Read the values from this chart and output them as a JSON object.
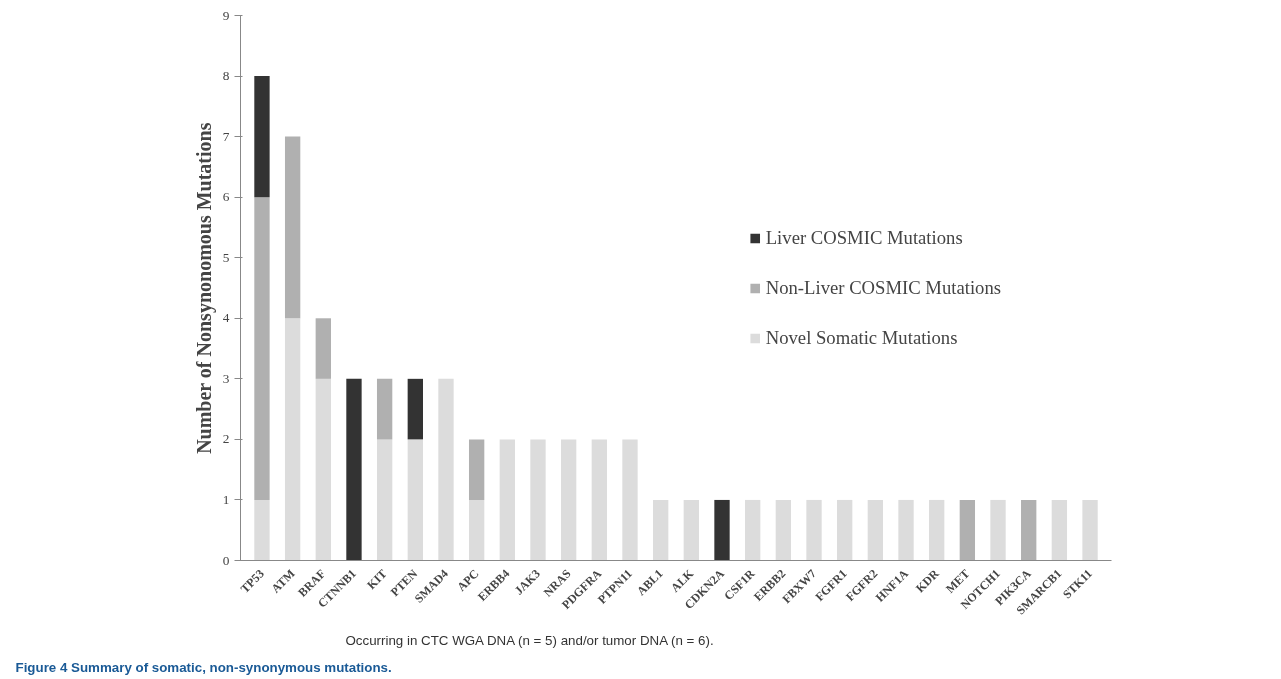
{
  "chart_data": {
    "type": "bar",
    "stacked": true,
    "ylabel": "Number of Nonsynonomous Mutations",
    "categories": [
      "TP53",
      "ATM",
      "BRAF",
      "CTNNB1",
      "KIT",
      "PTEN",
      "SMAD4",
      "APC",
      "ERBB4",
      "JAK3",
      "NRAS",
      "PDGFRA",
      "PTPN11",
      "ABL1",
      "ALK",
      "CDKN2A",
      "CSF1R",
      "ERBB2",
      "FBXW7",
      "FGFR1",
      "FGFR2",
      "HNF1A",
      "KDR",
      "MET",
      "NOTCH1",
      "PIK3CA",
      "SMARCB1",
      "STK11"
    ],
    "series": [
      {
        "name": "Novel Somatic Mutations",
        "color": "#dcdcdc",
        "values": [
          1,
          4,
          3,
          0,
          2,
          2,
          3,
          1,
          2,
          2,
          2,
          2,
          2,
          1,
          1,
          0,
          1,
          1,
          1,
          1,
          1,
          1,
          1,
          0,
          1,
          0,
          1,
          1
        ]
      },
      {
        "name": "Non-Liver COSMIC Mutations",
        "color": "#b0b0b0",
        "values": [
          5,
          3,
          1,
          0,
          1,
          0,
          0,
          1,
          0,
          0,
          0,
          0,
          0,
          0,
          0,
          0,
          0,
          0,
          0,
          0,
          0,
          0,
          0,
          1,
          0,
          1,
          0,
          0
        ]
      },
      {
        "name": "Liver COSMIC Mutations",
        "color": "#333333",
        "values": [
          2,
          0,
          0,
          3,
          0,
          1,
          0,
          0,
          0,
          0,
          0,
          0,
          0,
          0,
          0,
          1,
          0,
          0,
          0,
          0,
          0,
          0,
          0,
          0,
          0,
          0,
          0,
          0
        ]
      }
    ],
    "ylim": [
      0,
      9
    ],
    "yticks": [
      0,
      1,
      2,
      3,
      4,
      5,
      6,
      7,
      8,
      9
    ],
    "grid": false,
    "legend": "right",
    "annotations": [
      "Figure 4 Summary of somatic, non-synonymous mutations.",
      "Occurring in CTC WGA DNA (n = 5) and/or tumor DNA (n = 6)."
    ]
  }
}
